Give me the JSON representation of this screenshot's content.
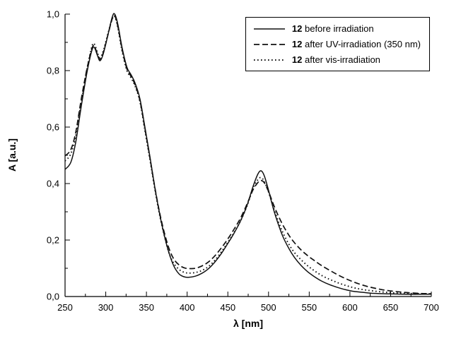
{
  "chart_data": {
    "type": "line",
    "xlabel": "λ [nm]",
    "ylabel": "A [a.u.]",
    "xlim": [
      250,
      700
    ],
    "ylim": [
      0,
      1.0
    ],
    "x_ticks": [
      250,
      300,
      350,
      400,
      450,
      500,
      550,
      600,
      650,
      700
    ],
    "x_tick_labels": [
      "250",
      "300",
      "350",
      "400",
      "450",
      "500",
      "550",
      "600",
      "650",
      "700"
    ],
    "x_minor_step": 25,
    "y_ticks": [
      0,
      0.2,
      0.4,
      0.6,
      0.8,
      1.0
    ],
    "y_tick_labels": [
      "0,0",
      "0,2",
      "0,4",
      "0,6",
      "0,8",
      "1,0"
    ],
    "y_minor_step": 0.1,
    "grid": false,
    "legend_position": "top-right",
    "line_color": "#111111",
    "legend": [
      {
        "prefix": "12",
        "text": " before irradiation",
        "style": "solid"
      },
      {
        "prefix": "12",
        "text": " after UV-irradiation (350 nm)",
        "style": "dashed"
      },
      {
        "prefix": "12",
        "text": " after vis-irradiation",
        "style": "dotted"
      }
    ],
    "series": [
      {
        "name": "12 before irradiation",
        "style": "solid",
        "color": "#111111",
        "points": [
          [
            250,
            0.45
          ],
          [
            257,
            0.475
          ],
          [
            263,
            0.545
          ],
          [
            270,
            0.675
          ],
          [
            277,
            0.795
          ],
          [
            283,
            0.872
          ],
          [
            286,
            0.882
          ],
          [
            290,
            0.852
          ],
          [
            293,
            0.835
          ],
          [
            297,
            0.86
          ],
          [
            303,
            0.93
          ],
          [
            308,
            0.99
          ],
          [
            311,
            1.0
          ],
          [
            315,
            0.962
          ],
          [
            320,
            0.882
          ],
          [
            326,
            0.812
          ],
          [
            331,
            0.786
          ],
          [
            336,
            0.756
          ],
          [
            342,
            0.7
          ],
          [
            348,
            0.602
          ],
          [
            354,
            0.5
          ],
          [
            360,
            0.392
          ],
          [
            366,
            0.296
          ],
          [
            372,
            0.216
          ],
          [
            378,
            0.152
          ],
          [
            384,
            0.106
          ],
          [
            390,
            0.08
          ],
          [
            396,
            0.07
          ],
          [
            402,
            0.068
          ],
          [
            410,
            0.072
          ],
          [
            418,
            0.082
          ],
          [
            426,
            0.098
          ],
          [
            434,
            0.122
          ],
          [
            442,
            0.152
          ],
          [
            450,
            0.188
          ],
          [
            458,
            0.226
          ],
          [
            466,
            0.27
          ],
          [
            474,
            0.326
          ],
          [
            481,
            0.39
          ],
          [
            487,
            0.434
          ],
          [
            491,
            0.445
          ],
          [
            495,
            0.426
          ],
          [
            500,
            0.376
          ],
          [
            506,
            0.31
          ],
          [
            512,
            0.256
          ],
          [
            518,
            0.21
          ],
          [
            525,
            0.17
          ],
          [
            532,
            0.138
          ],
          [
            540,
            0.11
          ],
          [
            548,
            0.088
          ],
          [
            556,
            0.071
          ],
          [
            565,
            0.055
          ],
          [
            575,
            0.042
          ],
          [
            585,
            0.032
          ],
          [
            595,
            0.024
          ],
          [
            605,
            0.018
          ],
          [
            615,
            0.015
          ],
          [
            625,
            0.012
          ],
          [
            640,
            0.01
          ],
          [
            655,
            0.009
          ],
          [
            670,
            0.008
          ],
          [
            685,
            0.008
          ],
          [
            700,
            0.008
          ]
        ]
      },
      {
        "name": "12 after UV-irradiation (350 nm)",
        "style": "dashed",
        "color": "#111111",
        "points": [
          [
            250,
            0.498
          ],
          [
            257,
            0.52
          ],
          [
            263,
            0.58
          ],
          [
            270,
            0.7
          ],
          [
            277,
            0.808
          ],
          [
            283,
            0.878
          ],
          [
            286,
            0.886
          ],
          [
            290,
            0.856
          ],
          [
            293,
            0.84
          ],
          [
            297,
            0.864
          ],
          [
            303,
            0.93
          ],
          [
            308,
            0.984
          ],
          [
            311,
            0.994
          ],
          [
            315,
            0.955
          ],
          [
            320,
            0.876
          ],
          [
            326,
            0.806
          ],
          [
            331,
            0.78
          ],
          [
            336,
            0.75
          ],
          [
            342,
            0.694
          ],
          [
            348,
            0.596
          ],
          [
            354,
            0.496
          ],
          [
            360,
            0.392
          ],
          [
            366,
            0.3
          ],
          [
            372,
            0.226
          ],
          [
            378,
            0.168
          ],
          [
            384,
            0.131
          ],
          [
            390,
            0.112
          ],
          [
            396,
            0.102
          ],
          [
            402,
            0.099
          ],
          [
            410,
            0.1
          ],
          [
            418,
            0.108
          ],
          [
            426,
            0.122
          ],
          [
            434,
            0.144
          ],
          [
            442,
            0.172
          ],
          [
            450,
            0.204
          ],
          [
            458,
            0.24
          ],
          [
            466,
            0.28
          ],
          [
            474,
            0.33
          ],
          [
            481,
            0.378
          ],
          [
            487,
            0.404
          ],
          [
            491,
            0.411
          ],
          [
            495,
            0.402
          ],
          [
            500,
            0.372
          ],
          [
            506,
            0.326
          ],
          [
            512,
            0.286
          ],
          [
            518,
            0.251
          ],
          [
            525,
            0.217
          ],
          [
            532,
            0.19
          ],
          [
            540,
            0.165
          ],
          [
            548,
            0.145
          ],
          [
            556,
            0.128
          ],
          [
            565,
            0.11
          ],
          [
            575,
            0.093
          ],
          [
            585,
            0.077
          ],
          [
            595,
            0.063
          ],
          [
            605,
            0.051
          ],
          [
            615,
            0.041
          ],
          [
            625,
            0.033
          ],
          [
            640,
            0.024
          ],
          [
            655,
            0.018
          ],
          [
            670,
            0.014
          ],
          [
            685,
            0.011
          ],
          [
            700,
            0.01
          ]
        ]
      },
      {
        "name": "12 after vis-irradiation",
        "style": "dotted",
        "color": "#111111",
        "points": [
          [
            250,
            0.48
          ],
          [
            257,
            0.505
          ],
          [
            263,
            0.568
          ],
          [
            270,
            0.69
          ],
          [
            277,
            0.806
          ],
          [
            283,
            0.886
          ],
          [
            286,
            0.894
          ],
          [
            290,
            0.862
          ],
          [
            293,
            0.846
          ],
          [
            297,
            0.87
          ],
          [
            303,
            0.934
          ],
          [
            308,
            0.984
          ],
          [
            311,
            0.992
          ],
          [
            315,
            0.95
          ],
          [
            320,
            0.87
          ],
          [
            326,
            0.8
          ],
          [
            331,
            0.775
          ],
          [
            336,
            0.745
          ],
          [
            342,
            0.69
          ],
          [
            348,
            0.59
          ],
          [
            354,
            0.49
          ],
          [
            360,
            0.386
          ],
          [
            366,
            0.292
          ],
          [
            372,
            0.216
          ],
          [
            378,
            0.152
          ],
          [
            384,
            0.116
          ],
          [
            390,
            0.096
          ],
          [
            396,
            0.086
          ],
          [
            402,
            0.083
          ],
          [
            410,
            0.085
          ],
          [
            418,
            0.092
          ],
          [
            426,
            0.106
          ],
          [
            434,
            0.128
          ],
          [
            442,
            0.158
          ],
          [
            450,
            0.192
          ],
          [
            458,
            0.228
          ],
          [
            466,
            0.27
          ],
          [
            474,
            0.324
          ],
          [
            481,
            0.384
          ],
          [
            487,
            0.414
          ],
          [
            491,
            0.421
          ],
          [
            495,
            0.406
          ],
          [
            500,
            0.37
          ],
          [
            506,
            0.316
          ],
          [
            512,
            0.266
          ],
          [
            518,
            0.224
          ],
          [
            525,
            0.185
          ],
          [
            532,
            0.155
          ],
          [
            540,
            0.13
          ],
          [
            548,
            0.109
          ],
          [
            556,
            0.092
          ],
          [
            565,
            0.075
          ],
          [
            575,
            0.061
          ],
          [
            585,
            0.049
          ],
          [
            595,
            0.039
          ],
          [
            605,
            0.031
          ],
          [
            615,
            0.025
          ],
          [
            625,
            0.021
          ],
          [
            640,
            0.016
          ],
          [
            655,
            0.013
          ],
          [
            670,
            0.011
          ],
          [
            685,
            0.01
          ],
          [
            700,
            0.009
          ]
        ]
      }
    ]
  }
}
